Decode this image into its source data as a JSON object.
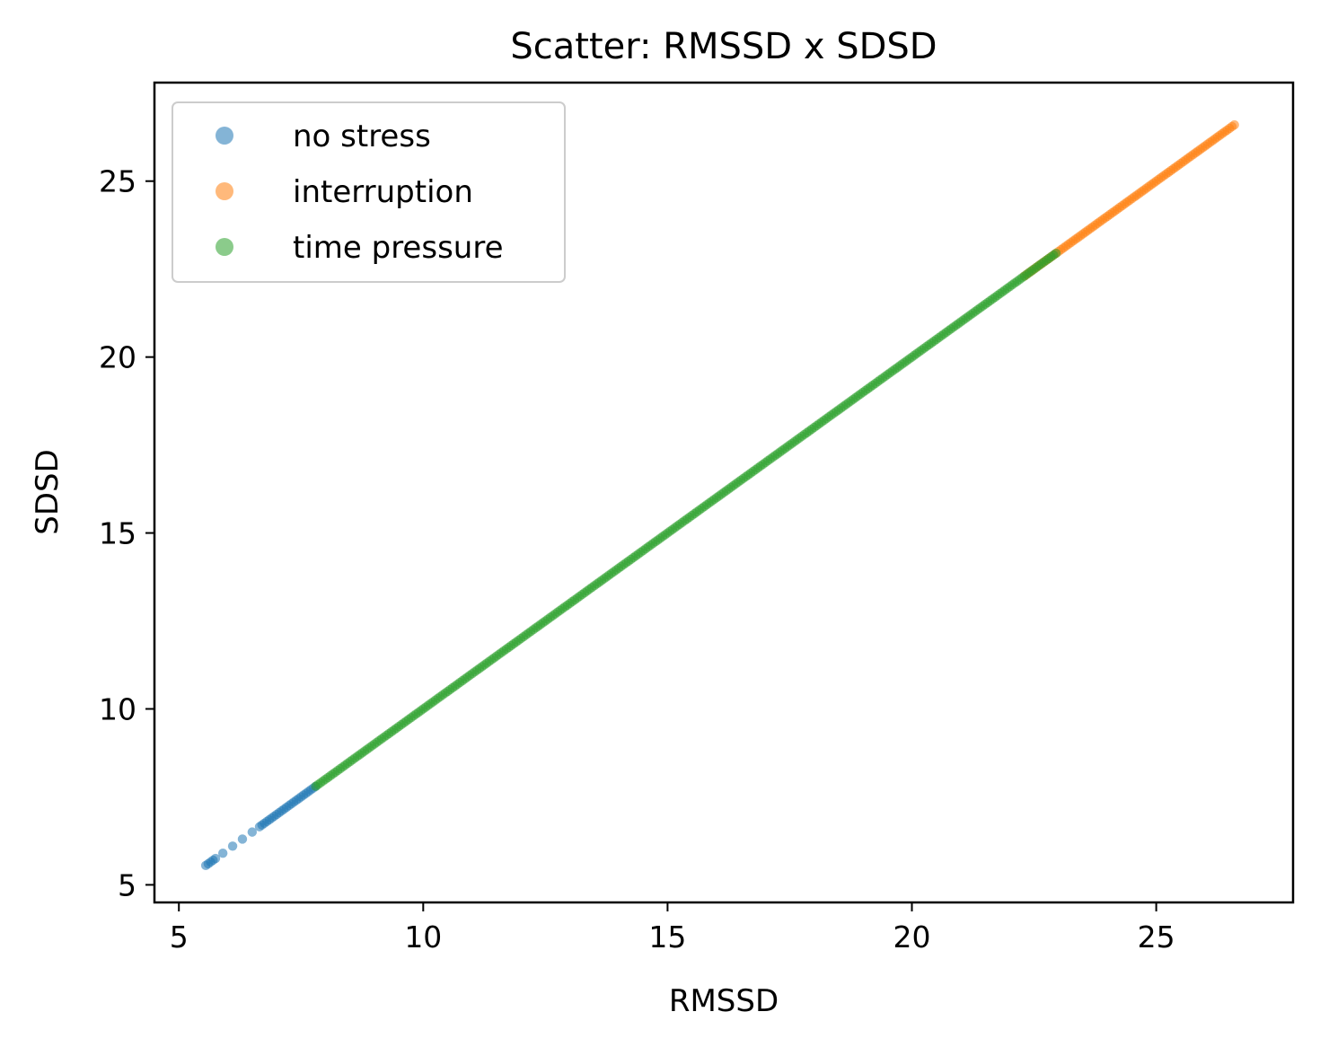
{
  "chart_data": {
    "type": "scatter",
    "title": "Scatter: RMSSD x SDSD",
    "xlabel": "RMSSD",
    "ylabel": "SDSD",
    "xlim": [
      4.5,
      27.8
    ],
    "ylim": [
      4.5,
      27.8
    ],
    "xticks": [
      5,
      10,
      15,
      20,
      25
    ],
    "yticks": [
      5,
      10,
      15,
      20,
      25
    ],
    "grid": false,
    "legend_position": "upper-left",
    "series": [
      {
        "name": "no stress",
        "color": "#1f77b4",
        "ranges": [
          [
            5.55,
            5.75
          ],
          [
            6.65,
            7.8
          ]
        ],
        "points": [
          5.9,
          6.1,
          6.3,
          6.5
        ]
      },
      {
        "name": "interruption",
        "color": "#ff7f0e",
        "ranges": [
          [
            22.3,
            26.6
          ]
        ],
        "points": []
      },
      {
        "name": "time pressure",
        "color": "#2ca02c",
        "ranges": [
          [
            7.8,
            22.95
          ]
        ],
        "points": []
      }
    ]
  }
}
